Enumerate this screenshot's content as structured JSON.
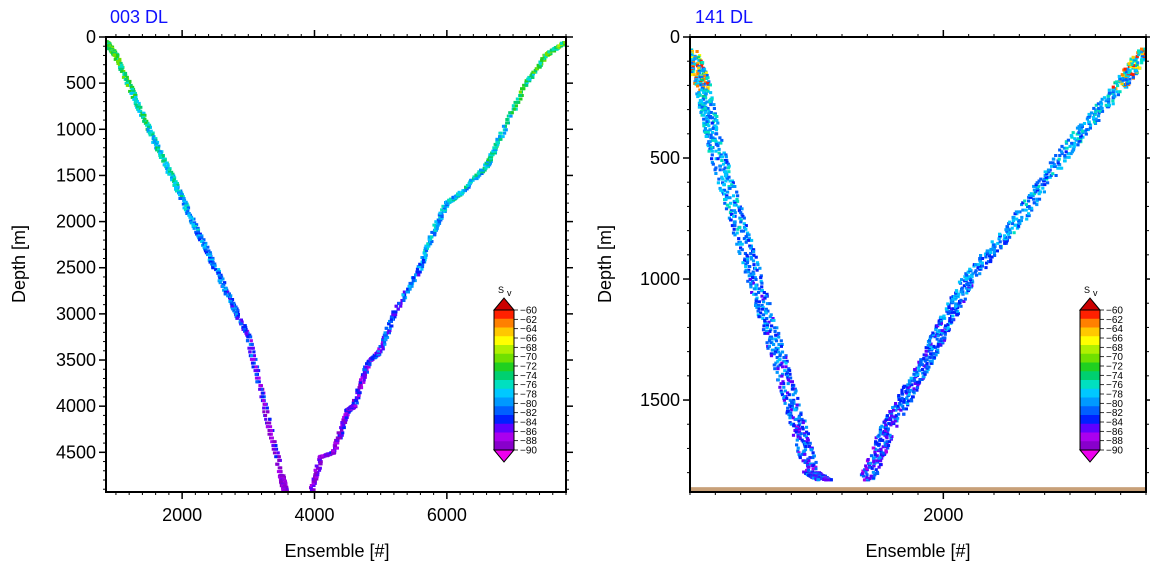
{
  "chart_data": [
    {
      "type": "heatmap",
      "title": "003 DL",
      "xlabel": "Ensemble [#]",
      "ylabel": "Depth [m]",
      "xlim": [
        850,
        7800
      ],
      "ylim": [
        0,
        4930
      ],
      "y_inverted": true,
      "x_ticks": [
        2000,
        4000,
        6000
      ],
      "x_tick_labels": [
        "2000",
        "4000",
        "6000"
      ],
      "y_ticks": [
        0,
        500,
        1000,
        1500,
        2000,
        2500,
        3000,
        3500,
        4000,
        4500
      ],
      "y_tick_labels": [
        "0",
        "500",
        "1000",
        "1500",
        "2000",
        "2500",
        "3000",
        "3500",
        "4000",
        "4500"
      ],
      "seafloor_depth": 4930,
      "down_track": [
        [
          850,
          50
        ],
        [
          1000,
          200
        ],
        [
          1500,
          1000
        ],
        [
          2000,
          1750
        ],
        [
          2500,
          2500
        ],
        [
          3000,
          3250
        ],
        [
          3500,
          4750
        ],
        [
          3560,
          4930
        ]
      ],
      "up_track": [
        [
          3950,
          4930
        ],
        [
          4100,
          4550
        ],
        [
          4300,
          4500
        ],
        [
          4500,
          4050
        ],
        [
          4600,
          4000
        ],
        [
          4800,
          3550
        ],
        [
          5000,
          3400
        ],
        [
          5200,
          3000
        ],
        [
          5600,
          2500
        ],
        [
          5800,
          2100
        ],
        [
          6000,
          1800
        ],
        [
          6200,
          1700
        ],
        [
          6600,
          1400
        ],
        [
          6800,
          1100
        ],
        [
          7200,
          500
        ],
        [
          7500,
          200
        ],
        [
          7800,
          50
        ]
      ],
      "colorbar": {
        "title": "S",
        "title_subscript": "v",
        "min": -90,
        "max": -60,
        "step": 2,
        "tick_labels": [
          "−60",
          "−62",
          "−64",
          "−66",
          "−68",
          "−70",
          "−72",
          "−74",
          "−76",
          "−78",
          "−80",
          "−82",
          "−84",
          "−86",
          "−88",
          "−90"
        ]
      }
    },
    {
      "type": "heatmap",
      "title": "141 DL",
      "xlabel": "Ensemble [#]",
      "ylabel": "Depth [m]",
      "xlim": [
        1000,
        2800
      ],
      "ylim": [
        0,
        1880
      ],
      "y_inverted": true,
      "x_ticks": [
        2000
      ],
      "x_tick_labels": [
        "2000"
      ],
      "y_ticks": [
        0,
        500,
        1000,
        1500
      ],
      "y_tick_labels": [
        "0",
        "500",
        "1000",
        "1500"
      ],
      "seafloor_depth": 1860,
      "down_track": [
        [
          1000,
          50
        ],
        [
          1050,
          200
        ],
        [
          1100,
          450
        ],
        [
          1200,
          800
        ],
        [
          1300,
          1150
        ],
        [
          1400,
          1500
        ],
        [
          1480,
          1800
        ],
        [
          1530,
          1830
        ]
      ],
      "up_track": [
        [
          1700,
          1830
        ],
        [
          1780,
          1620
        ],
        [
          1900,
          1400
        ],
        [
          2000,
          1200
        ],
        [
          2100,
          1000
        ],
        [
          2300,
          750
        ],
        [
          2500,
          450
        ],
        [
          2700,
          200
        ],
        [
          2800,
          50
        ]
      ],
      "colorbar": {
        "title": "S",
        "title_subscript": "v",
        "min": -90,
        "max": -60,
        "step": 2,
        "tick_labels": [
          "−60",
          "−62",
          "−64",
          "−66",
          "−68",
          "−70",
          "−72",
          "−74",
          "−76",
          "−78",
          "−80",
          "−82",
          "−84",
          "−86",
          "−88",
          "−90"
        ]
      }
    }
  ],
  "palette": {
    "title_color": "#1010ff",
    "seafloor_color": "#c8a078",
    "colormap": [
      "#8800cc",
      "#aa00ee",
      "#6000ff",
      "#0020ff",
      "#0060ff",
      "#0099ff",
      "#00c8ff",
      "#00e0c0",
      "#00d070",
      "#20d020",
      "#70e000",
      "#b0f000",
      "#ffff00",
      "#ffc800",
      "#ff8000",
      "#ff2000"
    ]
  }
}
